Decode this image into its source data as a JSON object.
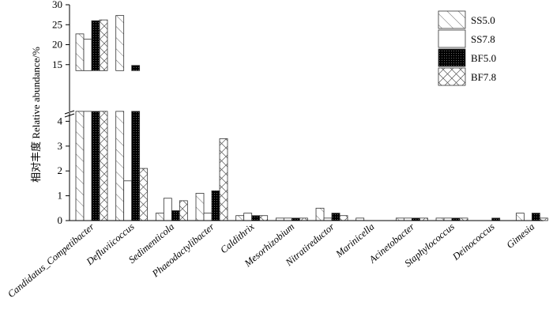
{
  "chart_data": {
    "type": "bar",
    "ylabel": "相对丰度 Relative abundance/%",
    "y_break": {
      "lower": [
        0,
        4.4
      ],
      "upper": [
        13.5,
        30
      ]
    },
    "yticks_lower": [
      "0",
      "1",
      "2",
      "3",
      "4"
    ],
    "yticks_upper": [
      "15",
      "20",
      "25",
      "30"
    ],
    "categories": [
      "Candidatus_Competibacter",
      "Defluviicoccus",
      "Sedimenticola",
      "Phaeodactylibacter",
      "Caldithrix",
      "Mesorhizobium",
      "Nitratireductor",
      "Marinicella",
      "Acinetobacter",
      "Staphylococcus",
      "Deinococcus",
      "Gimesia"
    ],
    "series": [
      {
        "name": "SS5.0",
        "pattern": "diagonal",
        "values": [
          22.7,
          27.3,
          0.3,
          1.1,
          0.2,
          0.1,
          0.5,
          0.1,
          0.1,
          0.1,
          0.0,
          0.3
        ]
      },
      {
        "name": "SS7.8",
        "pattern": "blank",
        "values": [
          21.4,
          1.6,
          0.9,
          0.3,
          0.3,
          0.1,
          0.1,
          0.0,
          0.1,
          0.1,
          0.0,
          0.0
        ]
      },
      {
        "name": "BF5.0",
        "pattern": "dense-black",
        "values": [
          26.0,
          14.8,
          0.4,
          1.2,
          0.2,
          0.1,
          0.3,
          0.0,
          0.1,
          0.1,
          0.1,
          0.3
        ]
      },
      {
        "name": "BF7.8",
        "pattern": "crosshatch",
        "values": [
          26.2,
          2.1,
          0.8,
          3.3,
          0.2,
          0.1,
          0.2,
          0.0,
          0.1,
          0.1,
          0.0,
          0.1
        ]
      }
    ],
    "legend_position": "top-right",
    "grid": false
  }
}
